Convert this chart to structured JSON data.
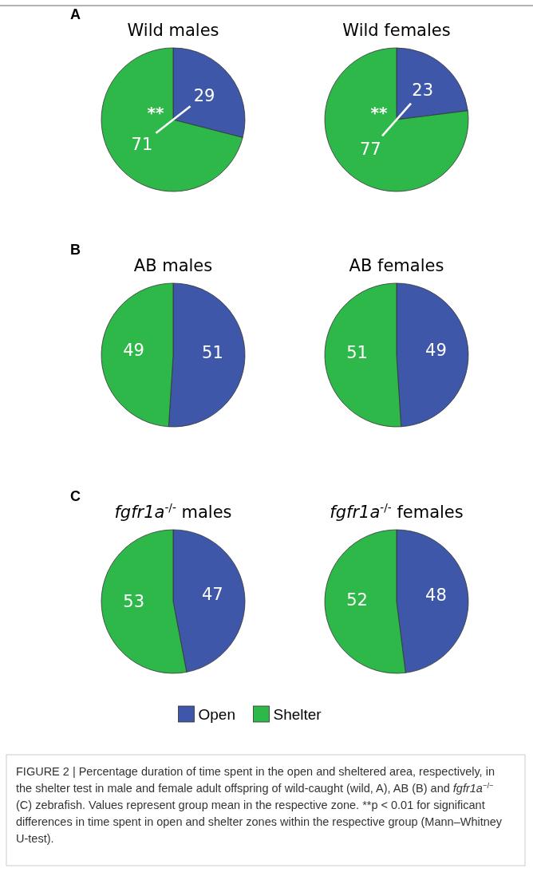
{
  "chart_data": [
    {
      "type": "pie",
      "title": "Wild males",
      "categories": [
        null,
        null
      ],
      "values": [
        29,
        71
      ],
      "colors": [
        "#3f57a8",
        "#2eb84a"
      ],
      "data_labels": true,
      "annotations": [
        "A",
        "**"
      ]
    },
    {
      "type": "pie",
      "title": "Wild females",
      "categories": [
        null,
        null
      ],
      "values": [
        23,
        77
      ],
      "colors": [
        "#3f57a8",
        "#2eb84a"
      ],
      "data_labels": true,
      "annotations": [
        "**"
      ]
    },
    {
      "type": "pie",
      "title": "AB males",
      "categories": [
        null,
        null
      ],
      "values": [
        51,
        49
      ],
      "colors": [
        "#3f57a8",
        "#2eb84a"
      ],
      "data_labels": true,
      "annotations": [
        "B"
      ]
    },
    {
      "type": "pie",
      "title": "AB females",
      "categories": [
        null,
        null
      ],
      "values": [
        49,
        51
      ],
      "colors": [
        "#3f57a8",
        "#2eb84a"
      ],
      "data_labels": true
    },
    {
      "type": "pie",
      "title": "fgfr1a$^{-/-}$ males",
      "categories": [
        null,
        null
      ],
      "values": [
        47,
        53
      ],
      "colors": [
        "#3f57a8",
        "#2eb84a"
      ],
      "data_labels": true,
      "annotations": [
        "C"
      ]
    },
    {
      "type": "pie",
      "title": "fgfr1a$^{-/-}$ females",
      "categories": [
        "Open",
        "Shelter"
      ],
      "values": [
        48,
        52
      ],
      "colors": [
        "#3f57a8",
        "#2eb84a"
      ],
      "data_labels": true,
      "legend": "bottom",
      "annotations": [
        "FIGURE 2 | Percentage duration of time spent in the open and sheltered area, respectively, in the shelter test in male and female adult offspring of wild-caught (wild, A), AB (B) and fgfr1a$^{−/−}$ (C) zebrafish. Values represent group mean in the respective zone. **p < 0.01 for significant differences in time spent in open and shelter zones within the respective group (Mann–Whitney U-test)."
      ]
    }
  ]
}
